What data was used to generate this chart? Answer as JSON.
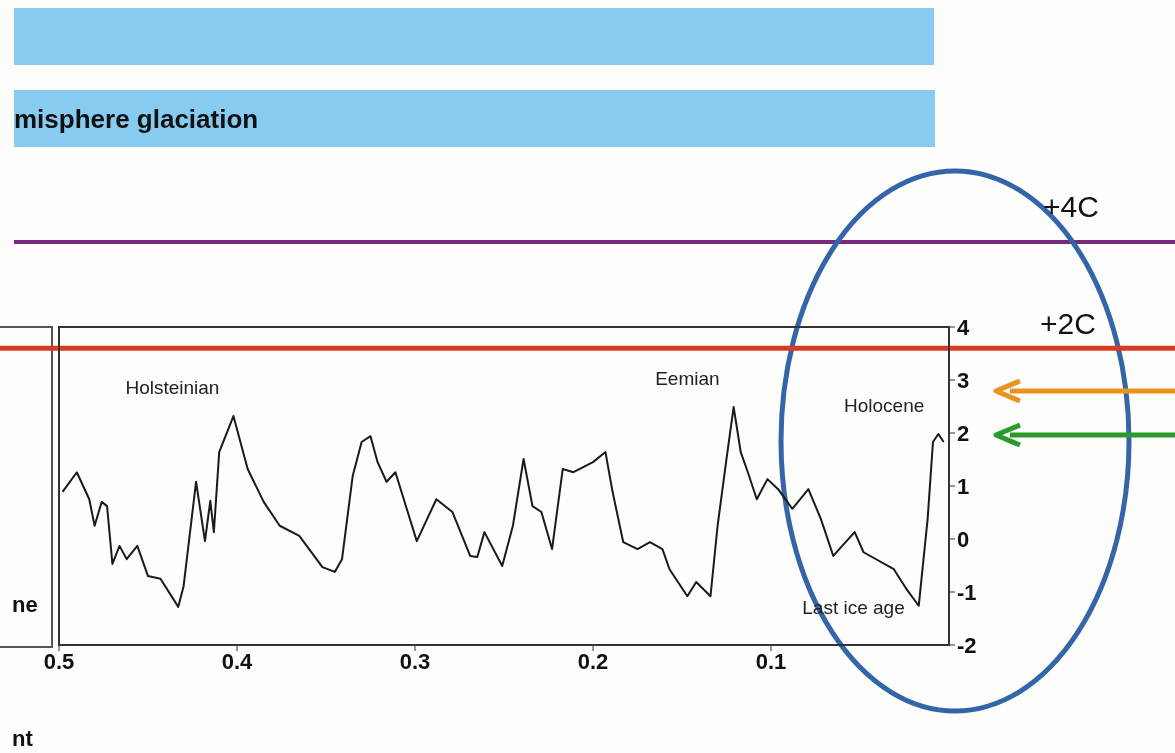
{
  "chart_data": {
    "type": "line",
    "x": [
      0.498,
      0.49,
      0.483,
      0.48,
      0.476,
      0.473,
      0.47,
      0.466,
      0.462,
      0.456,
      0.45,
      0.443,
      0.433,
      0.43,
      0.423,
      0.418,
      0.415,
      0.413,
      0.41,
      0.402,
      0.394,
      0.385,
      0.376,
      0.365,
      0.352,
      0.345,
      0.341,
      0.335,
      0.33,
      0.325,
      0.321,
      0.316,
      0.311,
      0.299,
      0.288,
      0.279,
      0.269,
      0.265,
      0.261,
      0.251,
      0.245,
      0.239,
      0.234,
      0.229,
      0.223,
      0.217,
      0.211,
      0.2,
      0.193,
      0.189,
      0.183,
      0.175,
      0.168,
      0.161,
      0.157,
      0.147,
      0.142,
      0.134,
      0.13,
      0.125,
      0.121,
      0.117,
      0.113,
      0.108,
      0.102,
      0.096,
      0.088,
      0.079,
      0.072,
      0.065,
      0.06,
      0.053,
      0.048,
      0.031,
      0.024,
      0.017,
      0.012,
      0.009,
      0.006,
      0.003
    ],
    "series": [
      {
        "color": "#1a1a1a",
        "values": [
          0.89,
          1.26,
          0.75,
          0.25,
          0.7,
          0.62,
          -0.47,
          -0.13,
          -0.38,
          -0.13,
          -0.7,
          -0.75,
          -1.28,
          -0.89,
          1.08,
          -0.04,
          0.72,
          0.13,
          1.64,
          2.32,
          1.32,
          0.7,
          0.25,
          0.06,
          -0.53,
          -0.62,
          -0.38,
          1.19,
          1.83,
          1.94,
          1.45,
          1.08,
          1.26,
          -0.04,
          0.75,
          0.51,
          -0.32,
          -0.34,
          0.13,
          -0.51,
          0.25,
          1.51,
          0.62,
          0.51,
          -0.19,
          1.32,
          1.26,
          1.45,
          1.64,
          0.89,
          -0.06,
          -0.19,
          -0.06,
          -0.19,
          -0.57,
          -1.08,
          -0.81,
          -1.08,
          0.25,
          1.51,
          2.49,
          1.64,
          1.26,
          0.75,
          1.13,
          0.94,
          0.57,
          0.94,
          0.38,
          -0.32,
          -0.13,
          0.13,
          -0.25,
          -0.57,
          -0.94,
          -1.26,
          0.38,
          1.83,
          1.98,
          1.83
        ]
      }
    ],
    "xlim": [
      0.5,
      0
    ],
    "xticks": [
      0.5,
      0.4,
      0.3,
      0.2,
      0.1
    ],
    "ylim": [
      -2,
      4
    ],
    "yticks": [
      -2,
      -1,
      0,
      1,
      2,
      3,
      4
    ],
    "ref_lines": [
      {
        "axis": "y",
        "value": 3.6,
        "label": "+2C",
        "color": "#d93a25"
      }
    ],
    "annotations": [
      {
        "text": "Holsteinian",
        "x": 0.402,
        "y": 2.32
      },
      {
        "text": "Eemian",
        "x": 0.121,
        "y": 2.49
      },
      {
        "text": "Holocene",
        "x": 0.006,
        "y": 1.98
      },
      {
        "text": "Last ice age",
        "x": 0.017,
        "y": -1.26
      },
      "misphere glaciation",
      "+4C",
      "ne",
      "nt"
    ]
  }
}
